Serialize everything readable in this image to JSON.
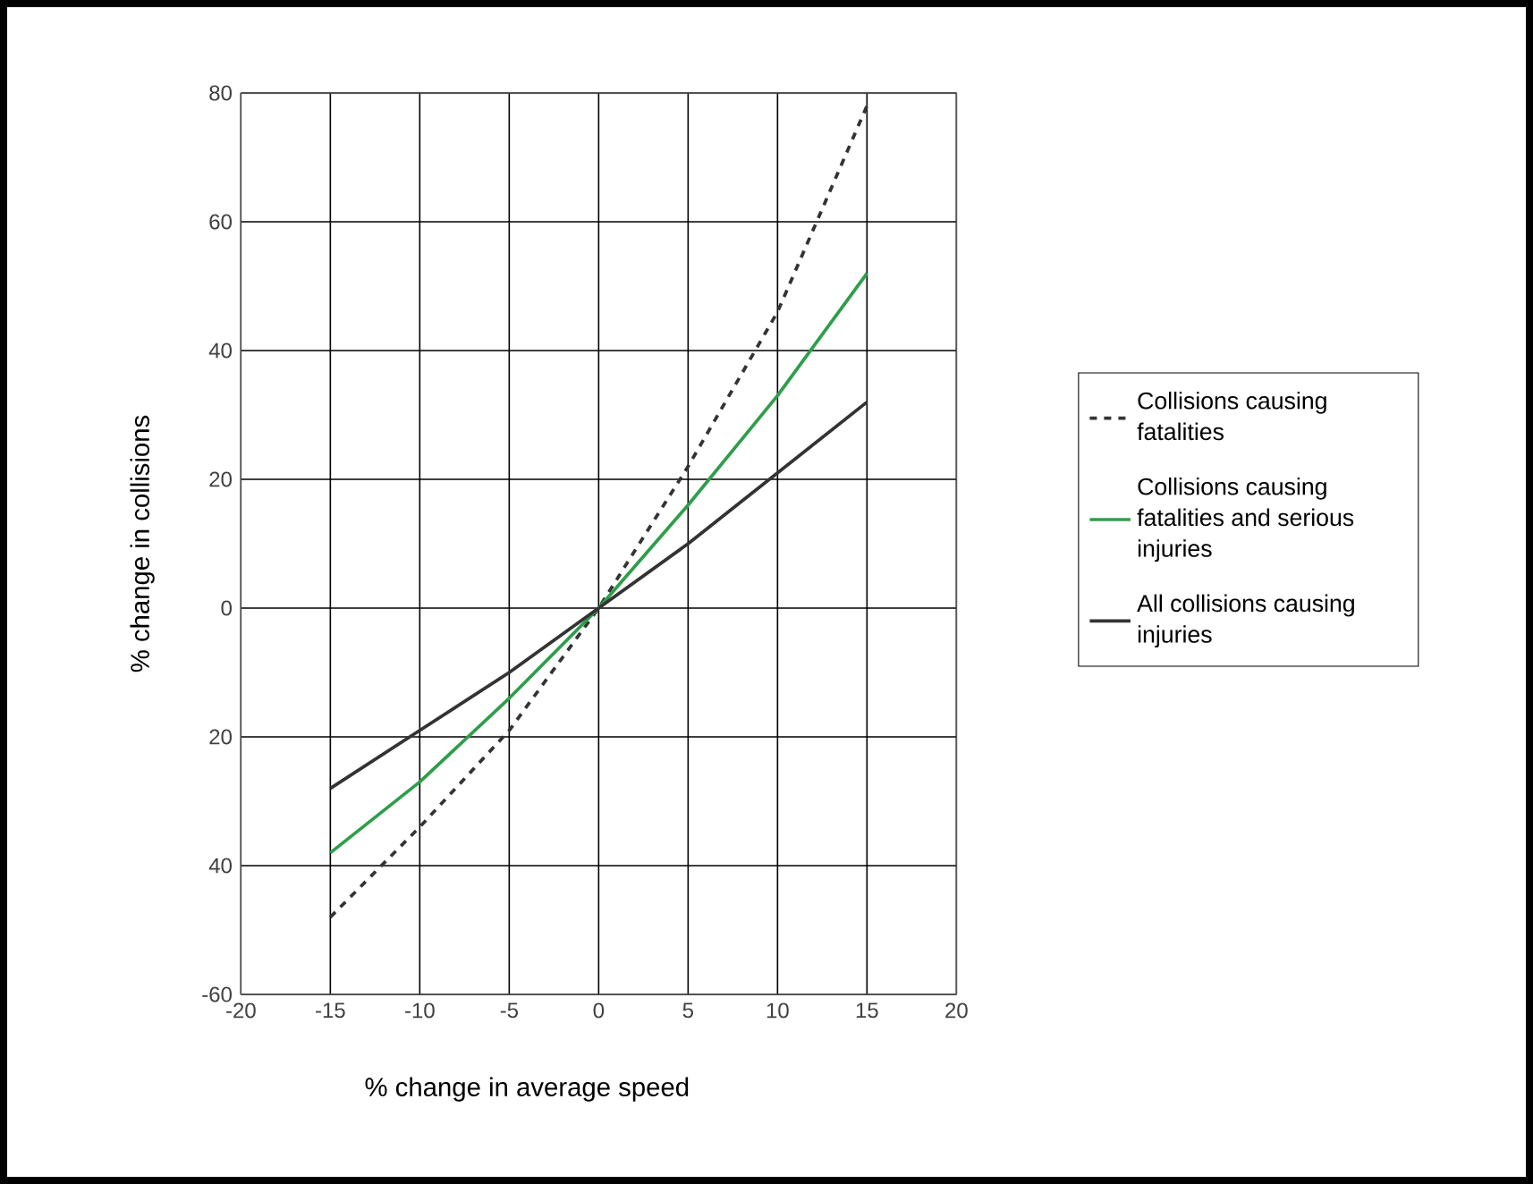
{
  "chart_data": {
    "type": "line",
    "xlabel": "% change in average speed",
    "ylabel": "% change in collisions",
    "x": [
      -15,
      -10,
      -5,
      0,
      5,
      10,
      15
    ],
    "series": [
      {
        "name": "Collisions causing fatalities",
        "color": "#333333",
        "line_style": "dashed",
        "values": [
          -48,
          -34,
          -19,
          0,
          22,
          46,
          78
        ]
      },
      {
        "name": "Collisions causing fatalities and serious injuries",
        "color": "#2e9e4a",
        "line_style": "solid",
        "values": [
          -38,
          -27,
          -14,
          0,
          16,
          33,
          52
        ]
      },
      {
        "name": "All collisions causing injuries",
        "color": "#333333",
        "line_style": "solid",
        "values": [
          -28,
          -19,
          -10,
          0,
          10,
          21,
          32
        ]
      }
    ],
    "xlim": [
      -20,
      20
    ],
    "xticks": [
      -20,
      -15,
      -10,
      -5,
      0,
      5,
      10,
      15,
      20
    ],
    "ylim": [
      -60,
      80
    ],
    "yticks": [
      80,
      60,
      40,
      20,
      0,
      {
        "value": -20,
        "label": "20"
      },
      {
        "value": -40,
        "label": "40"
      },
      -60
    ],
    "grid": true,
    "legend": "right",
    "marker": "none"
  }
}
